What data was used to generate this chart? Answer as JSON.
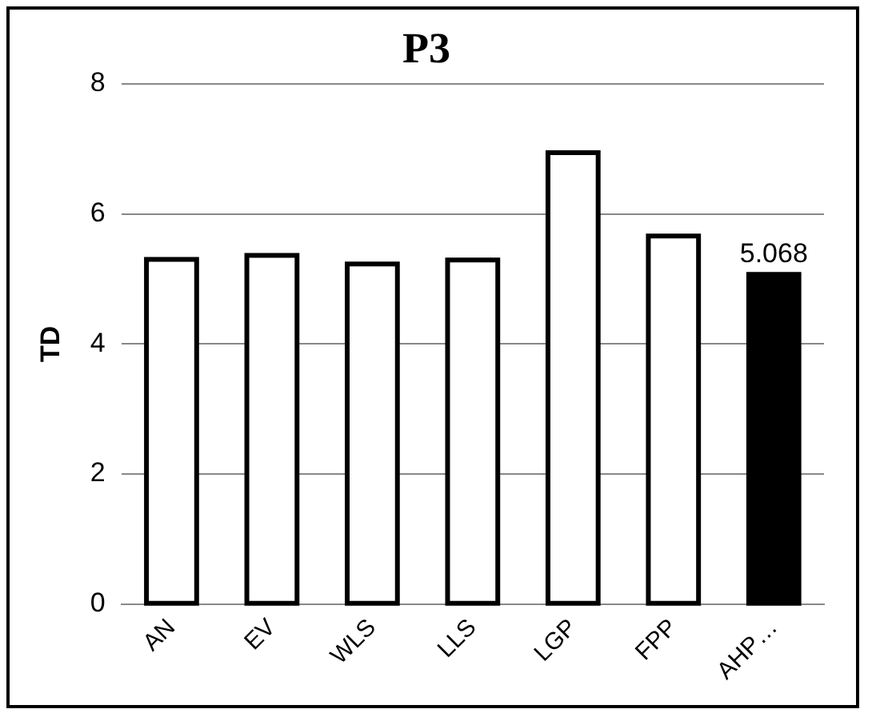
{
  "chart_data": {
    "type": "bar",
    "title": "P3",
    "ylabel": "TD",
    "categories": [
      "AN",
      "EV",
      "WLS",
      "LLS",
      "LGP",
      "FPP",
      "AHP…"
    ],
    "values": [
      5.3,
      5.36,
      5.23,
      5.29,
      6.94,
      5.66,
      5.068
    ],
    "colors": [
      "#ffffff",
      "#ffffff",
      "#ffffff",
      "#ffffff",
      "#ffffff",
      "#ffffff",
      "#000000"
    ],
    "value_labels": [
      null,
      null,
      null,
      null,
      null,
      null,
      "5.068"
    ],
    "ylim": [
      0,
      8
    ],
    "yticks": [
      0,
      2,
      4,
      6,
      8
    ],
    "grid": "y",
    "legend": false
  }
}
